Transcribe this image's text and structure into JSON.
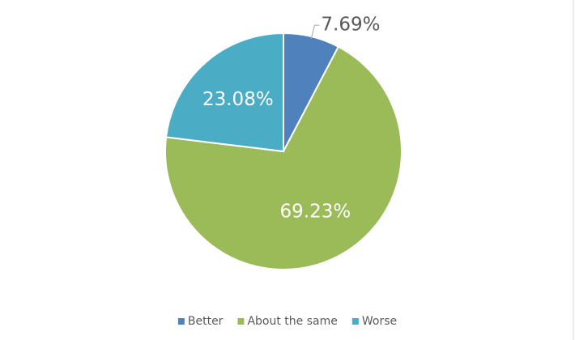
{
  "chart_data": {
    "type": "pie",
    "categories": [
      "Better",
      "About the same",
      "Worse"
    ],
    "values": [
      7.69,
      69.23,
      23.08
    ],
    "value_labels": [
      "7.69%",
      "69.23%",
      "23.08%"
    ],
    "colors": [
      "#4f81bd",
      "#9bbb59",
      "#4bacc6"
    ],
    "legend": "bottom"
  }
}
